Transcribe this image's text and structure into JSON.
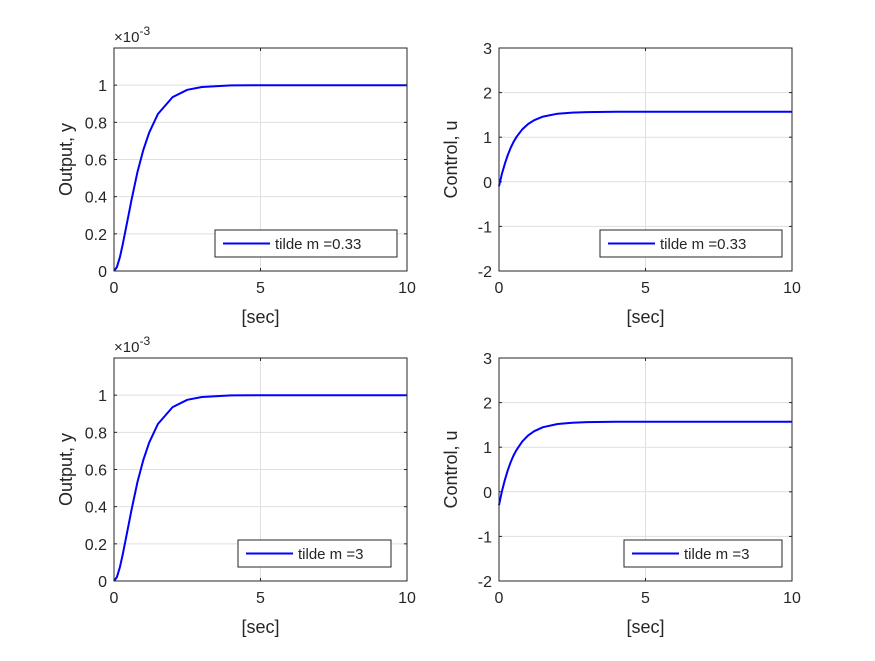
{
  "chart_data": [
    {
      "type": "line",
      "title": "",
      "xlabel": "[sec]",
      "ylabel": "Output, y",
      "xlim": [
        0,
        10
      ],
      "ylim": [
        0,
        1.2
      ],
      "xticks": [
        0,
        5,
        10
      ],
      "yticks": [
        0,
        0.2,
        0.4,
        0.6,
        0.8,
        1
      ],
      "ytick_labels": [
        "0",
        "0.2",
        "0.4",
        "0.6",
        "0.8",
        "1"
      ],
      "exponent_label": "×10",
      "exponent_power": "-3",
      "grid": true,
      "legend": {
        "label": "tilde m =0.33",
        "placement": "bottom-right"
      },
      "series": [
        {
          "name": "tilde m =0.33",
          "color": "#0000ff",
          "x": [
            0,
            0.1,
            0.2,
            0.3,
            0.4,
            0.5,
            0.6,
            0.8,
            1.0,
            1.2,
            1.5,
            2,
            2.5,
            3,
            4,
            5,
            6,
            8,
            10
          ],
          "y": [
            0,
            0.021,
            0.074,
            0.145,
            0.224,
            0.305,
            0.385,
            0.531,
            0.651,
            0.745,
            0.845,
            0.936,
            0.975,
            0.99,
            0.999,
            1,
            1,
            1,
            1
          ]
        }
      ]
    },
    {
      "type": "line",
      "title": "",
      "xlabel": "[sec]",
      "ylabel": "Control, u",
      "xlim": [
        0,
        10
      ],
      "ylim": [
        -2,
        3
      ],
      "xticks": [
        0,
        5,
        10
      ],
      "yticks": [
        -2,
        -1,
        0,
        1,
        2,
        3
      ],
      "ytick_labels": [
        "-2",
        "-1",
        "0",
        "1",
        "2",
        "3"
      ],
      "grid": true,
      "legend": {
        "label": "tilde m =0.33",
        "placement": "bottom-right"
      },
      "series": [
        {
          "name": "tilde m =0.33",
          "color": "#0000ff",
          "x": [
            0,
            0.1,
            0.2,
            0.3,
            0.4,
            0.5,
            0.6,
            0.8,
            1.0,
            1.2,
            1.5,
            2,
            2.5,
            3,
            4,
            5,
            6,
            8,
            10
          ],
          "y": [
            -0.1,
            0.177,
            0.409,
            0.602,
            0.763,
            0.897,
            1.009,
            1.18,
            1.299,
            1.381,
            1.461,
            1.526,
            1.552,
            1.563,
            1.569,
            1.57,
            1.57,
            1.57,
            1.57
          ]
        }
      ]
    },
    {
      "type": "line",
      "title": "",
      "xlabel": "[sec]",
      "ylabel": "Output, y",
      "xlim": [
        0,
        10
      ],
      "ylim": [
        0,
        1.2
      ],
      "xticks": [
        0,
        5,
        10
      ],
      "yticks": [
        0,
        0.2,
        0.4,
        0.6,
        0.8,
        1
      ],
      "ytick_labels": [
        "0",
        "0.2",
        "0.4",
        "0.6",
        "0.8",
        "1"
      ],
      "exponent_label": "×10",
      "exponent_power": "-3",
      "grid": true,
      "legend": {
        "label": "tilde m =3",
        "placement": "bottom-right"
      },
      "series": [
        {
          "name": "tilde m =3",
          "color": "#0000ff",
          "x": [
            0,
            0.1,
            0.2,
            0.3,
            0.4,
            0.5,
            0.6,
            0.8,
            1.0,
            1.2,
            1.5,
            2,
            2.5,
            3,
            4,
            5,
            6,
            8,
            10
          ],
          "y": [
            0,
            0.021,
            0.074,
            0.145,
            0.224,
            0.305,
            0.385,
            0.531,
            0.651,
            0.745,
            0.845,
            0.936,
            0.975,
            0.99,
            0.999,
            1,
            1,
            1,
            1
          ]
        }
      ]
    },
    {
      "type": "line",
      "title": "",
      "xlabel": "[sec]",
      "ylabel": "Control, u",
      "xlim": [
        0,
        10
      ],
      "ylim": [
        -2,
        3
      ],
      "xticks": [
        0,
        5,
        10
      ],
      "yticks": [
        -2,
        -1,
        0,
        1,
        2,
        3
      ],
      "ytick_labels": [
        "-2",
        "-1",
        "0",
        "1",
        "2",
        "3"
      ],
      "grid": true,
      "legend": {
        "label": "tilde m =3",
        "placement": "bottom-right"
      },
      "series": [
        {
          "name": "tilde m =3",
          "color": "#0000ff",
          "x": [
            0,
            0.1,
            0.2,
            0.3,
            0.4,
            0.5,
            0.6,
            0.8,
            1.0,
            1.2,
            1.5,
            2,
            2.5,
            3,
            4,
            5,
            6,
            8,
            10
          ],
          "y": [
            -0.3,
            0.01,
            0.27,
            0.485,
            0.667,
            0.816,
            0.942,
            1.132,
            1.267,
            1.359,
            1.448,
            1.521,
            1.55,
            1.562,
            1.569,
            1.57,
            1.57,
            1.57,
            1.57
          ]
        }
      ]
    }
  ]
}
